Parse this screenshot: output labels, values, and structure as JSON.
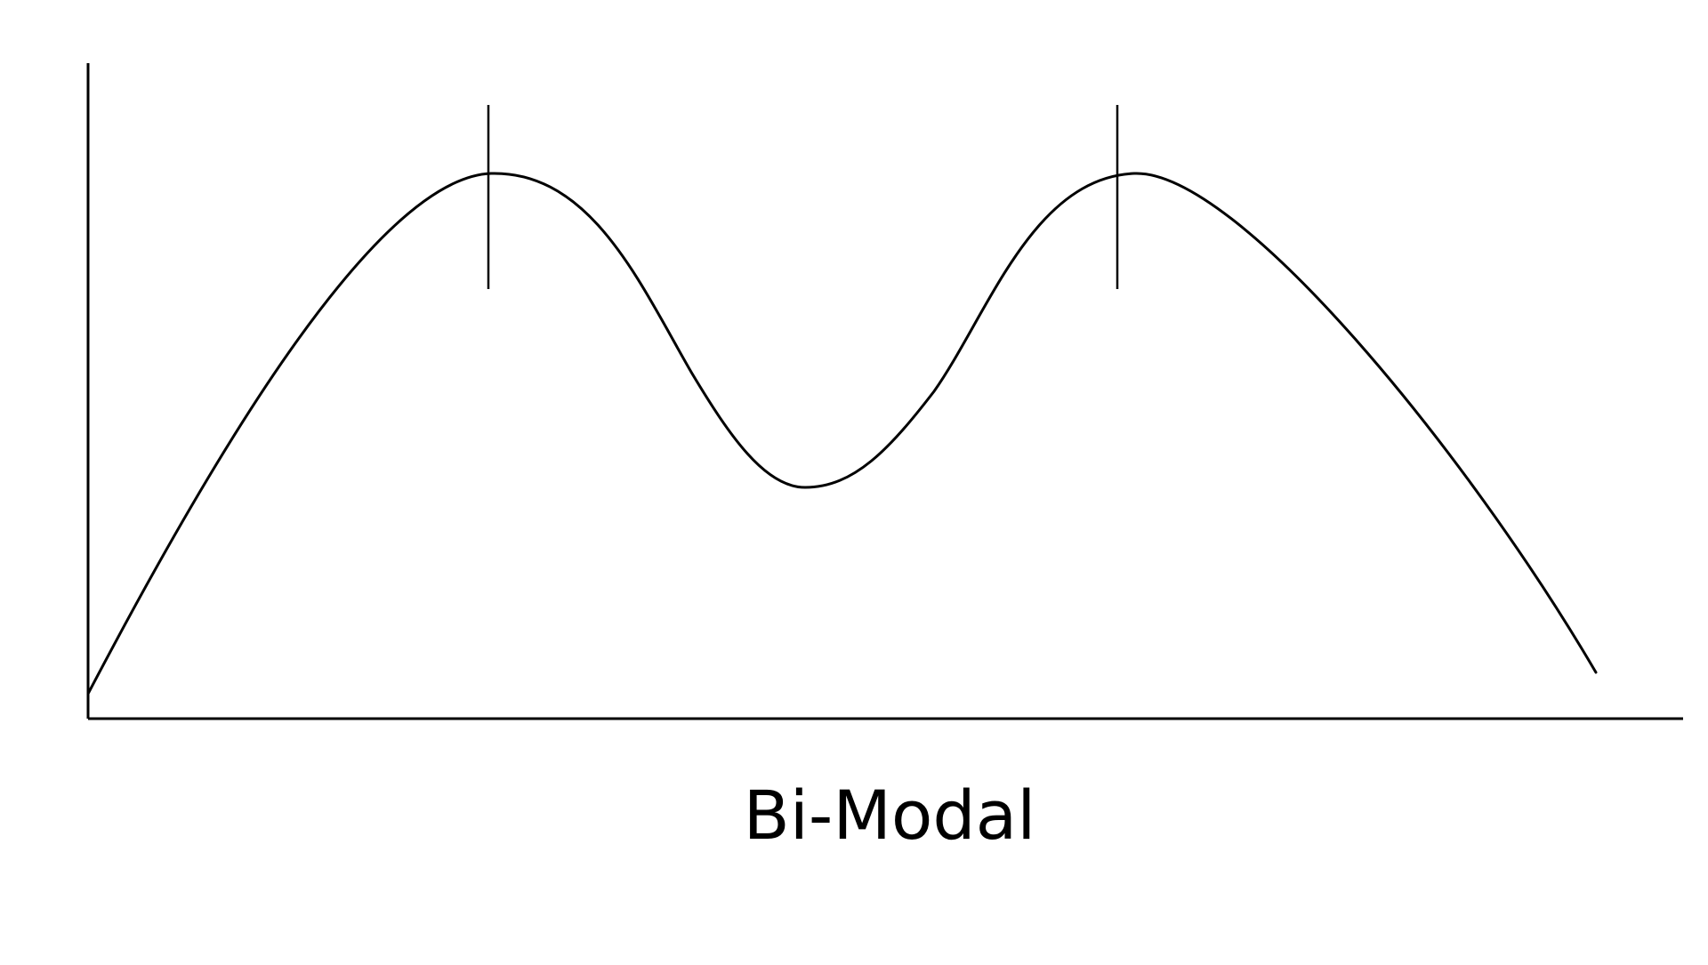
{
  "caption": "Bi-Modal",
  "colors": {
    "background": "#ffffff",
    "ink": "#000000"
  },
  "curve": {
    "shape": "bimodal-distribution",
    "mode_markers": 2
  }
}
